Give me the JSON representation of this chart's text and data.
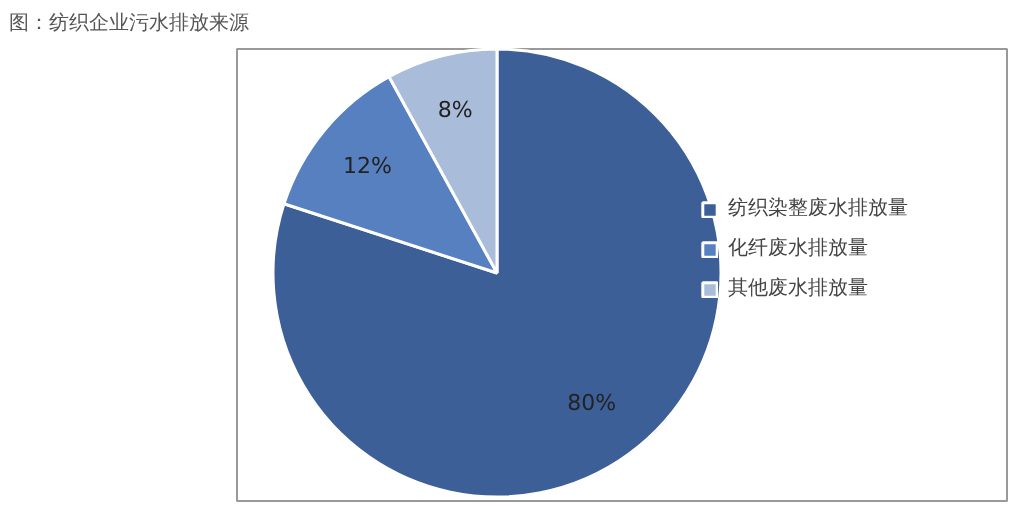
{
  "chart_data": {
    "type": "pie",
    "title": "图：纺织企业污水排放来源",
    "categories": [
      "纺织染整废水排放量",
      "化纤废水排放量",
      "其他废水排放量"
    ],
    "values": [
      80,
      12,
      8
    ],
    "colors": [
      "#3d5f98",
      "#5680c0",
      "#a9bcd9"
    ],
    "value_labels": [
      "80%",
      "12%",
      "8%"
    ],
    "legend": "right"
  }
}
